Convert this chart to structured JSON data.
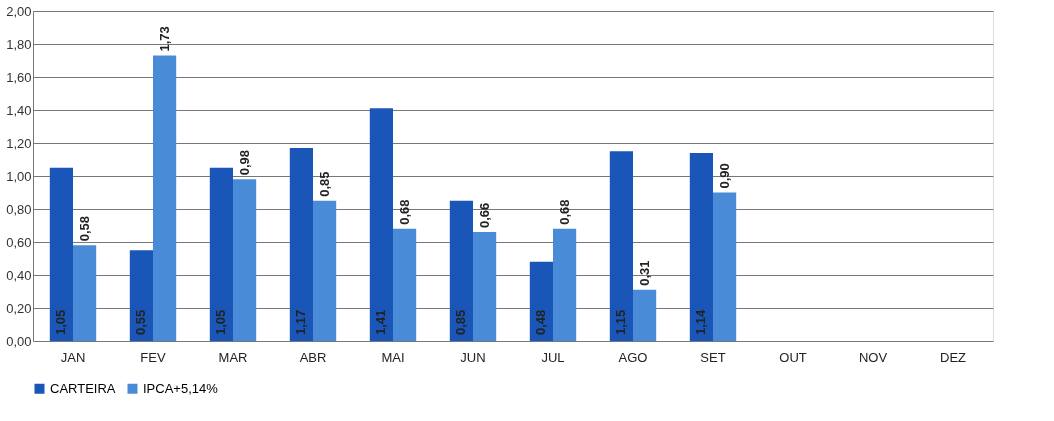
{
  "chart_data": {
    "type": "bar",
    "categories": [
      "JAN",
      "FEV",
      "MAR",
      "ABR",
      "MAI",
      "JUN",
      "JUL",
      "AGO",
      "SET",
      "OUT",
      "NOV",
      "DEZ"
    ],
    "series": [
      {
        "name": "CARTEIRA",
        "color": "#1a56b8",
        "values": [
          1.05,
          0.55,
          1.05,
          1.17,
          1.41,
          0.85,
          0.48,
          1.15,
          1.14,
          null,
          null,
          null
        ],
        "value_labels": [
          "1,05",
          "0,55",
          "1,05",
          "1,17",
          "1,41",
          "0,85",
          "0,48",
          "1,15",
          "1,14",
          null,
          null,
          null
        ]
      },
      {
        "name": "IPCA+5,14%",
        "color": "#4a8bd8",
        "values": [
          0.58,
          1.73,
          0.98,
          0.85,
          0.68,
          0.66,
          0.68,
          0.31,
          0.9,
          null,
          null,
          null
        ],
        "value_labels": [
          "0,58",
          "1,73",
          "0,98",
          "0,85",
          "0,68",
          "0,66",
          "0,68",
          "0,31",
          "0,90",
          null,
          null,
          null
        ]
      }
    ],
    "ylim": [
      0,
      2
    ],
    "yticks": [
      {
        "value": 0,
        "label": "0,00"
      },
      {
        "value": 0.2,
        "label": "0,20"
      },
      {
        "value": 0.4,
        "label": "0,40"
      },
      {
        "value": 0.6,
        "label": "0,60"
      },
      {
        "value": 0.8,
        "label": "0,80"
      },
      {
        "value": 1.0,
        "label": "1,00"
      },
      {
        "value": 1.2,
        "label": "1,20"
      },
      {
        "value": 1.4,
        "label": "1,40"
      },
      {
        "value": 1.6,
        "label": "1,60"
      },
      {
        "value": 1.8,
        "label": "1,80"
      },
      {
        "value": 2.0,
        "label": "2,00"
      }
    ],
    "grid": "y",
    "legend": "bottom"
  }
}
